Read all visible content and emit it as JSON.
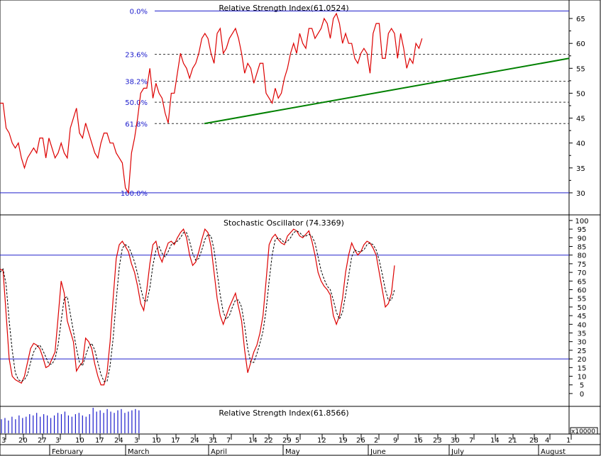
{
  "chart_data": [
    {
      "type": "line",
      "title": "Relative Strength Index(61.0524)",
      "ylim": [
        26,
        68
      ],
      "y_ticks": [
        30,
        35,
        40,
        45,
        50,
        55,
        60,
        65
      ],
      "fib_levels": [
        {
          "label": "0.0%",
          "value": 66.5
        },
        {
          "label": "23.6%",
          "value": 57.8
        },
        {
          "label": "38.2%",
          "value": 52.4
        },
        {
          "label": "50.0%",
          "value": 48.2
        },
        {
          "label": "61.8%",
          "value": 43.9
        },
        {
          "label": "100.0%",
          "value": 30.0
        }
      ],
      "fib_solid": [
        "0.0%",
        "100.0%"
      ],
      "series": [
        {
          "color": "#dd0000",
          "values": [
            48,
            48,
            43,
            42,
            40,
            39,
            40,
            37,
            35,
            37,
            38,
            39,
            38,
            41,
            41,
            37,
            41,
            39,
            37,
            38,
            40,
            38,
            37,
            43,
            45,
            47,
            42,
            41,
            44,
            42,
            40,
            38,
            37,
            40,
            42,
            42,
            40,
            40,
            38,
            37,
            36,
            31,
            30,
            38,
            41,
            45,
            50,
            51,
            51,
            55,
            49,
            52,
            50,
            49,
            46,
            44,
            50,
            50,
            54,
            58,
            56,
            55,
            53,
            55,
            56,
            58,
            61,
            62,
            61,
            58,
            56,
            62,
            63,
            58,
            59,
            61,
            62,
            63,
            61,
            58,
            54,
            56,
            55,
            52,
            54,
            56,
            56,
            50,
            49,
            48,
            51,
            49,
            50,
            53,
            55,
            58,
            60,
            58,
            62,
            60,
            59,
            63,
            63,
            61,
            62,
            63,
            65,
            64,
            61,
            65,
            66,
            64,
            60,
            62,
            60,
            60,
            57,
            56,
            58,
            59,
            58,
            54,
            62,
            64,
            64,
            57,
            57,
            62,
            63,
            62,
            57,
            62,
            59,
            55,
            57,
            56,
            60,
            59,
            61
          ]
        }
      ],
      "trendline": {
        "color": "#008000",
        "from": {
          "index": 43,
          "value": 43.9
        },
        "to": {
          "index": 185,
          "value": 57.0
        }
      }
    },
    {
      "type": "line",
      "title": "Stochastic Oscillator (74.3369)",
      "ylim": [
        -7,
        102
      ],
      "y_ticks": [
        0,
        5,
        10,
        15,
        20,
        25,
        30,
        35,
        40,
        45,
        50,
        55,
        60,
        65,
        70,
        75,
        80,
        85,
        90,
        95,
        100
      ],
      "reference_lines": [
        80,
        20
      ],
      "series": [
        {
          "color": "#dd0000",
          "style": "solid",
          "values": [
            72,
            71,
            46,
            20,
            10,
            8,
            7,
            6,
            10,
            18,
            26,
            29,
            28,
            26,
            21,
            15,
            16,
            20,
            24,
            44,
            65,
            58,
            42,
            36,
            30,
            13,
            16,
            18,
            32,
            30,
            26,
            17,
            10,
            5,
            5,
            12,
            30,
            55,
            78,
            86,
            88,
            85,
            82,
            75,
            70,
            62,
            52,
            48,
            60,
            75,
            86,
            88,
            80,
            76,
            82,
            87,
            88,
            86,
            90,
            93,
            95,
            90,
            80,
            74,
            76,
            82,
            89,
            95,
            93,
            85,
            70,
            55,
            45,
            40,
            45,
            50,
            54,
            58,
            50,
            42,
            25,
            12,
            18,
            24,
            28,
            35,
            45,
            65,
            86,
            90,
            92,
            89,
            87,
            86,
            91,
            93,
            95,
            94,
            91,
            90,
            92,
            94,
            88,
            80,
            70,
            65,
            62,
            60,
            57,
            45,
            40,
            45,
            55,
            70,
            80,
            87,
            83,
            80,
            82,
            86,
            88,
            87,
            84,
            80,
            70,
            60,
            50,
            52,
            58,
            74
          ]
        },
        {
          "color": "#000000",
          "style": "dashed",
          "values": [
            70,
            72,
            63,
            42,
            25,
            12,
            8,
            7,
            8,
            11,
            18,
            24,
            27,
            28,
            25,
            21,
            17,
            17,
            20,
            28,
            42,
            55,
            56,
            46,
            36,
            26,
            18,
            16,
            22,
            27,
            29,
            25,
            18,
            11,
            7,
            7,
            16,
            32,
            54,
            73,
            84,
            86,
            85,
            81,
            76,
            69,
            61,
            54,
            53,
            61,
            74,
            83,
            85,
            81,
            79,
            82,
            86,
            87,
            88,
            90,
            93,
            93,
            88,
            81,
            77,
            78,
            83,
            89,
            92,
            91,
            83,
            70,
            57,
            47,
            43,
            45,
            50,
            54,
            54,
            50,
            39,
            26,
            18,
            18,
            23,
            29,
            36,
            48,
            65,
            80,
            89,
            90,
            89,
            87,
            88,
            90,
            93,
            94,
            93,
            91,
            91,
            92,
            91,
            87,
            79,
            71,
            66,
            62,
            60,
            54,
            47,
            43,
            47,
            57,
            68,
            79,
            83,
            82,
            82,
            83,
            86,
            87,
            86,
            83,
            77,
            69,
            60,
            54,
            54,
            60
          ]
        }
      ]
    },
    {
      "type": "bar",
      "title": "Relative Strength Index(61.8566)",
      "series": [
        {
          "color": "#1a1acc",
          "values": [
            0.55,
            0.6,
            0.5,
            0.65,
            0.55,
            0.7,
            0.6,
            0.65,
            0.75,
            0.7,
            0.8,
            0.65,
            0.75,
            0.7,
            0.6,
            0.7,
            0.8,
            0.75,
            0.85,
            0.7,
            0.65,
            0.75,
            0.8,
            0.7,
            0.65,
            0.75,
            1.0,
            0.85,
            0.9,
            0.8,
            0.95,
            0.85,
            0.8,
            0.9,
            0.95,
            0.8,
            0.85,
            0.9,
            0.95,
            0.9
          ]
        }
      ]
    }
  ],
  "x_axis": {
    "day_ticks": [
      "3",
      "20",
      "27",
      "3",
      "10",
      "17",
      "24",
      "3",
      "10",
      "17",
      "24",
      "31",
      "7",
      "14",
      "22",
      "29",
      "5",
      "12",
      "19",
      "26",
      "2",
      "9",
      "16",
      "23",
      "30",
      "7",
      "14",
      "21",
      "28",
      "4",
      "1"
    ],
    "month_labels": [
      "February",
      "March",
      "April",
      "May",
      "June",
      "July",
      "August"
    ],
    "scale_label": "x10000"
  }
}
